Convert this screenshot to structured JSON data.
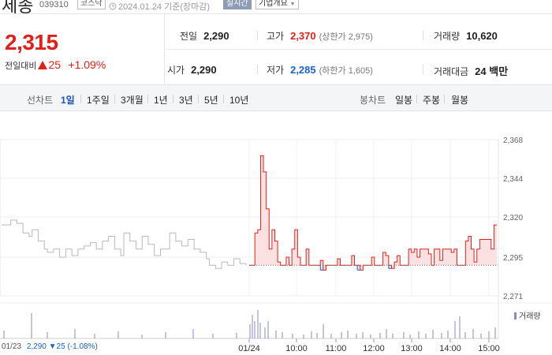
{
  "header": {
    "company_name": "세종",
    "code": "039310",
    "market": "코스닥",
    "timestamp": "2024.01.24 기준(장마감)",
    "realtime_label": "실시간",
    "info_label": "기업개요"
  },
  "quote": {
    "price": "2,315",
    "change_label": "전일대비",
    "change_value": "25",
    "change_pct": "+1.09%"
  },
  "stats": {
    "prev_close_label": "전일",
    "prev_close": "2,290",
    "open_label": "시가",
    "open": "2,290",
    "high_label": "고가",
    "high": "2,370",
    "upper_limit": "(상한가 2,975)",
    "low_label": "저가",
    "low": "2,285",
    "lower_limit": "(하한가 1,605)",
    "volume_label": "거래량",
    "volume": "10,620",
    "amount_label": "거래대금",
    "amount": "24 백만"
  },
  "toolbar": {
    "line_label": "선차트",
    "periods": [
      "1일",
      "1주일",
      "3개월",
      "1년",
      "3년",
      "5년",
      "10년"
    ],
    "selected_period": "1일",
    "candle_label": "봉차트",
    "candles": [
      "일봉",
      "주봉",
      "월봉"
    ]
  },
  "colors": {
    "up": "#e0211b",
    "down": "#1d62c9",
    "accent": "#1c51b5"
  },
  "chart_data": {
    "type": "line",
    "y_ticks": [
      "2,368",
      "2,344",
      "2,320",
      "2,295",
      "2,271"
    ],
    "ylim": [
      2271,
      2368
    ],
    "x_ticks": [
      "01/24",
      "10:00",
      "11:00",
      "12:00",
      "13:00",
      "14:00",
      "15:00"
    ],
    "baseline": 2290,
    "baseline_label": "2,290",
    "prev_day": [
      [
        0,
        2315
      ],
      [
        3,
        2318
      ],
      [
        5,
        2316
      ],
      [
        7,
        2310
      ],
      [
        9,
        2308
      ],
      [
        10,
        2312
      ],
      [
        12,
        2305
      ],
      [
        14,
        2300
      ],
      [
        15,
        2298
      ],
      [
        17,
        2300
      ],
      [
        19,
        2295
      ],
      [
        21,
        2300
      ],
      [
        23,
        2296
      ],
      [
        25,
        2300
      ],
      [
        27,
        2302
      ],
      [
        29,
        2304
      ],
      [
        31,
        2300
      ],
      [
        33,
        2305
      ],
      [
        35,
        2308
      ],
      [
        37,
        2300
      ],
      [
        39,
        2296
      ],
      [
        40,
        2310
      ],
      [
        42,
        2305
      ],
      [
        44,
        2300
      ],
      [
        46,
        2308
      ],
      [
        48,
        2303
      ],
      [
        50,
        2296
      ],
      [
        52,
        2300
      ],
      [
        55,
        2310
      ],
      [
        57,
        2305
      ],
      [
        59,
        2302
      ],
      [
        61,
        2306
      ],
      [
        63,
        2300
      ],
      [
        65,
        2298
      ],
      [
        67,
        2294
      ],
      [
        68,
        2290
      ],
      [
        70,
        2288
      ],
      [
        72,
        2292
      ],
      [
        74,
        2290
      ],
      [
        76,
        2294
      ],
      [
        78,
        2291
      ],
      [
        80,
        2290
      ]
    ],
    "today": [
      [
        0,
        2290
      ],
      [
        1,
        2290
      ],
      [
        2,
        2310
      ],
      [
        3,
        2312
      ],
      [
        4,
        2358
      ],
      [
        5,
        2348
      ],
      [
        6,
        2325
      ],
      [
        7,
        2300
      ],
      [
        8,
        2312
      ],
      [
        9,
        2305
      ],
      [
        10,
        2292
      ],
      [
        11,
        2290
      ],
      [
        12,
        2290
      ],
      [
        13,
        2295
      ],
      [
        14,
        2290
      ],
      [
        15,
        2300
      ],
      [
        16,
        2312
      ],
      [
        17,
        2295
      ],
      [
        18,
        2290
      ],
      [
        19,
        2290
      ],
      [
        20,
        2300
      ],
      [
        21,
        2290
      ],
      [
        22,
        2290
      ],
      [
        23,
        2290
      ],
      [
        24,
        2290
      ],
      [
        25,
        2293
      ],
      [
        26,
        2287
      ],
      [
        27,
        2290
      ],
      [
        28,
        2290
      ],
      [
        29,
        2290
      ],
      [
        30,
        2290
      ],
      [
        31,
        2294
      ],
      [
        32,
        2290
      ],
      [
        33,
        2290
      ],
      [
        34,
        2290
      ],
      [
        35,
        2290
      ],
      [
        36,
        2296
      ],
      [
        37,
        2290
      ],
      [
        38,
        2290
      ],
      [
        39,
        2287
      ],
      [
        40,
        2290
      ],
      [
        41,
        2290
      ],
      [
        42,
        2290
      ],
      [
        43,
        2295
      ],
      [
        44,
        2290
      ],
      [
        45,
        2290
      ],
      [
        46,
        2290
      ],
      [
        47,
        2298
      ],
      [
        48,
        2296
      ],
      [
        49,
        2290
      ],
      [
        50,
        2288
      ],
      [
        51,
        2292
      ],
      [
        52,
        2296
      ],
      [
        53,
        2290
      ],
      [
        54,
        2290
      ],
      [
        55,
        2290
      ],
      [
        56,
        2300
      ],
      [
        57,
        2298
      ],
      [
        58,
        2300
      ],
      [
        59,
        2295
      ],
      [
        60,
        2300
      ],
      [
        61,
        2300
      ],
      [
        62,
        2300
      ],
      [
        63,
        2297
      ],
      [
        64,
        2290
      ],
      [
        65,
        2300
      ],
      [
        66,
        2300
      ],
      [
        67,
        2293
      ],
      [
        68,
        2300
      ],
      [
        69,
        2300
      ],
      [
        70,
        2300
      ],
      [
        71,
        2298
      ],
      [
        72,
        2300
      ],
      [
        73,
        2290
      ],
      [
        74,
        2290
      ],
      [
        75,
        2290
      ],
      [
        76,
        2305
      ],
      [
        77,
        2308
      ],
      [
        78,
        2300
      ],
      [
        79,
        2292
      ],
      [
        80,
        2300
      ],
      [
        81,
        2306
      ],
      [
        82,
        2306
      ],
      [
        83,
        2306
      ],
      [
        84,
        2306
      ],
      [
        85,
        2300
      ],
      [
        86,
        2315
      ],
      [
        87,
        2315
      ]
    ],
    "volume_label": "거래량",
    "footer_date": "01/23",
    "footer_price": "2,290",
    "footer_change": "▼25",
    "footer_pct": "(-1.08%)"
  }
}
